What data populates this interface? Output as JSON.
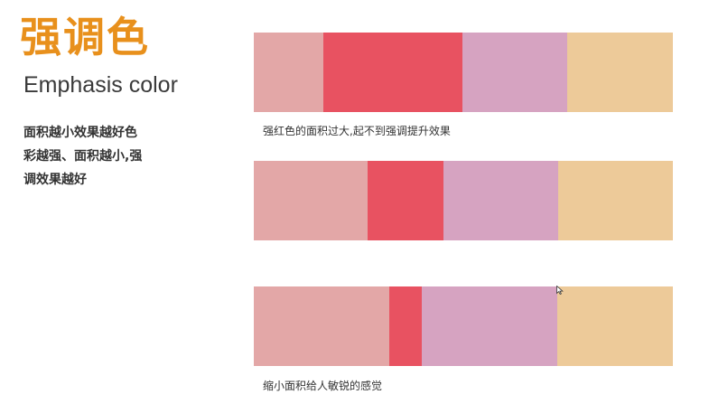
{
  "title": {
    "zh": "强调色",
    "en": "Emphasis color"
  },
  "description": {
    "lines": [
      "面积越小效果越好色",
      "彩越强、面积越小,强",
      "调效果越好"
    ]
  },
  "colors": {
    "pink": "#e3a7a7",
    "red": "#e85261",
    "mauve": "#d6a3c1",
    "sand": "#edca99",
    "title_orange": "#e8901c"
  },
  "examples": [
    {
      "caption": "强红色的面积过大,起不到强调提升效果",
      "segments": [
        {
          "color": "pink",
          "share": 0.166
        },
        {
          "color": "red",
          "share": 0.332
        },
        {
          "color": "mauve",
          "share": 0.25
        },
        {
          "color": "sand",
          "share": 0.252
        }
      ]
    },
    {
      "caption": "",
      "segments": [
        {
          "color": "pink",
          "share": 0.272
        },
        {
          "color": "red",
          "share": 0.181
        },
        {
          "color": "mauve",
          "share": 0.274
        },
        {
          "color": "sand",
          "share": 0.273
        }
      ]
    },
    {
      "caption": "缩小面积给人敏锐的感觉",
      "segments": [
        {
          "color": "pink",
          "share": 0.323
        },
        {
          "color": "red",
          "share": 0.078
        },
        {
          "color": "mauve",
          "share": 0.323
        },
        {
          "color": "sand",
          "share": 0.276
        }
      ]
    }
  ]
}
